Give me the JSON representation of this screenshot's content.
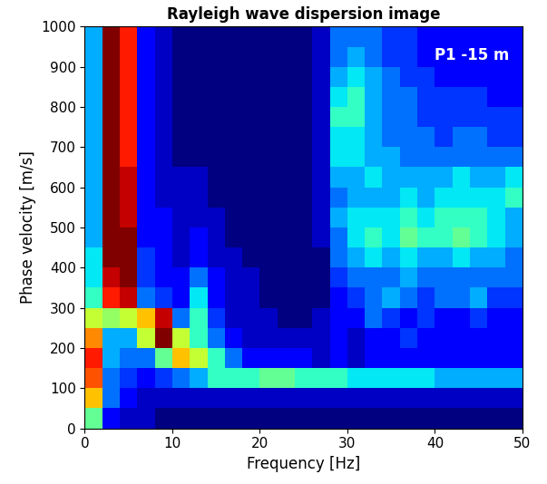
{
  "chart_data": {
    "type": "heatmap",
    "title": "Rayleigh wave dispersion image",
    "x_label": "Frequency [Hz]",
    "y_label": "Phase velocity [m/s]",
    "annotation": "P1 -15 m",
    "color": "jet",
    "xlim": [
      0,
      50
    ],
    "ylim": [
      0,
      1000
    ],
    "xticks": [
      0,
      10,
      20,
      30,
      40,
      50
    ],
    "yticks": [
      0,
      100,
      200,
      300,
      400,
      500,
      600,
      700,
      800,
      900,
      1000
    ],
    "x_edges": [
      0,
      2,
      4,
      6,
      8,
      10,
      12,
      14,
      16,
      18,
      20,
      22,
      24,
      26,
      28,
      30,
      32,
      34,
      36,
      38,
      40,
      42,
      44,
      46,
      48,
      50
    ],
    "y_edges": [
      0,
      50,
      100,
      150,
      200,
      250,
      300,
      350,
      400,
      450,
      500,
      550,
      600,
      650,
      700,
      750,
      800,
      850,
      900,
      950,
      1000
    ],
    "cells": [
      [
        0.5,
        0.2,
        0.15,
        0.15,
        0.1,
        0.1,
        0.1,
        0.1,
        0.1,
        0.1,
        0.1,
        0.1,
        0.1,
        0.1,
        0.1,
        0.1,
        0.1,
        0.1,
        0.1,
        0.1,
        0.1,
        0.1,
        0.1,
        0.1,
        0.1
      ],
      [
        0.7,
        0.3,
        0.2,
        0.15,
        0.15,
        0.15,
        0.15,
        0.15,
        0.15,
        0.15,
        0.15,
        0.15,
        0.15,
        0.15,
        0.15,
        0.15,
        0.15,
        0.15,
        0.15,
        0.15,
        0.15,
        0.15,
        0.15,
        0.15,
        0.15
      ],
      [
        0.8,
        0.3,
        0.25,
        0.2,
        0.25,
        0.3,
        0.35,
        0.45,
        0.45,
        0.45,
        0.5,
        0.5,
        0.45,
        0.45,
        0.45,
        0.4,
        0.4,
        0.4,
        0.4,
        0.4,
        0.35,
        0.35,
        0.35,
        0.35,
        0.35
      ],
      [
        0.85,
        0.35,
        0.3,
        0.3,
        0.5,
        0.7,
        0.6,
        0.45,
        0.3,
        0.2,
        0.2,
        0.2,
        0.2,
        0.15,
        0.2,
        0.15,
        0.2,
        0.2,
        0.2,
        0.2,
        0.2,
        0.2,
        0.2,
        0.2,
        0.2
      ],
      [
        0.75,
        0.35,
        0.35,
        0.6,
        0.95,
        0.6,
        0.45,
        0.3,
        0.2,
        0.15,
        0.15,
        0.15,
        0.15,
        0.15,
        0.2,
        0.15,
        0.2,
        0.2,
        0.25,
        0.2,
        0.2,
        0.2,
        0.2,
        0.2,
        0.2
      ],
      [
        0.6,
        0.55,
        0.6,
        0.7,
        0.9,
        0.3,
        0.45,
        0.25,
        0.15,
        0.15,
        0.15,
        0.1,
        0.1,
        0.15,
        0.2,
        0.2,
        0.3,
        0.25,
        0.2,
        0.25,
        0.2,
        0.2,
        0.25,
        0.2,
        0.2
      ],
      [
        0.45,
        0.85,
        0.9,
        0.3,
        0.25,
        0.2,
        0.4,
        0.2,
        0.15,
        0.15,
        0.1,
        0.1,
        0.1,
        0.1,
        0.2,
        0.25,
        0.3,
        0.35,
        0.3,
        0.25,
        0.3,
        0.3,
        0.35,
        0.25,
        0.25
      ],
      [
        0.4,
        0.9,
        0.95,
        0.25,
        0.2,
        0.2,
        0.3,
        0.2,
        0.15,
        0.15,
        0.1,
        0.1,
        0.1,
        0.1,
        0.25,
        0.3,
        0.3,
        0.3,
        0.35,
        0.3,
        0.3,
        0.3,
        0.3,
        0.3,
        0.3
      ],
      [
        0.4,
        0.95,
        0.95,
        0.25,
        0.2,
        0.15,
        0.2,
        0.15,
        0.15,
        0.1,
        0.1,
        0.1,
        0.1,
        0.1,
        0.3,
        0.35,
        0.4,
        0.35,
        0.4,
        0.35,
        0.35,
        0.4,
        0.35,
        0.35,
        0.3
      ],
      [
        0.35,
        0.95,
        0.95,
        0.2,
        0.2,
        0.15,
        0.2,
        0.15,
        0.1,
        0.1,
        0.1,
        0.1,
        0.1,
        0.15,
        0.3,
        0.4,
        0.45,
        0.4,
        0.5,
        0.45,
        0.45,
        0.5,
        0.45,
        0.4,
        0.35
      ],
      [
        0.35,
        0.95,
        0.9,
        0.2,
        0.2,
        0.15,
        0.15,
        0.15,
        0.1,
        0.1,
        0.1,
        0.1,
        0.1,
        0.15,
        0.35,
        0.4,
        0.4,
        0.4,
        0.45,
        0.4,
        0.45,
        0.45,
        0.45,
        0.4,
        0.35
      ],
      [
        0.35,
        0.95,
        0.9,
        0.2,
        0.15,
        0.15,
        0.15,
        0.1,
        0.1,
        0.1,
        0.1,
        0.1,
        0.1,
        0.15,
        0.3,
        0.35,
        0.35,
        0.35,
        0.4,
        0.35,
        0.4,
        0.4,
        0.4,
        0.4,
        0.45
      ],
      [
        0.35,
        0.95,
        0.9,
        0.2,
        0.15,
        0.15,
        0.15,
        0.1,
        0.1,
        0.1,
        0.1,
        0.1,
        0.1,
        0.15,
        0.35,
        0.35,
        0.4,
        0.35,
        0.35,
        0.35,
        0.35,
        0.4,
        0.35,
        0.35,
        0.4
      ],
      [
        0.35,
        0.95,
        0.85,
        0.2,
        0.15,
        0.1,
        0.1,
        0.1,
        0.1,
        0.1,
        0.1,
        0.1,
        0.1,
        0.15,
        0.4,
        0.4,
        0.35,
        0.35,
        0.3,
        0.3,
        0.3,
        0.3,
        0.3,
        0.3,
        0.3
      ],
      [
        0.35,
        0.95,
        0.85,
        0.2,
        0.15,
        0.1,
        0.1,
        0.1,
        0.1,
        0.1,
        0.1,
        0.1,
        0.1,
        0.15,
        0.4,
        0.4,
        0.35,
        0.3,
        0.3,
        0.3,
        0.25,
        0.3,
        0.3,
        0.25,
        0.25
      ],
      [
        0.35,
        0.95,
        0.85,
        0.2,
        0.15,
        0.1,
        0.1,
        0.1,
        0.1,
        0.1,
        0.1,
        0.1,
        0.1,
        0.15,
        0.45,
        0.45,
        0.35,
        0.3,
        0.3,
        0.25,
        0.25,
        0.25,
        0.25,
        0.25,
        0.25
      ],
      [
        0.35,
        0.95,
        0.85,
        0.2,
        0.15,
        0.1,
        0.1,
        0.1,
        0.1,
        0.1,
        0.1,
        0.1,
        0.1,
        0.15,
        0.4,
        0.45,
        0.35,
        0.3,
        0.3,
        0.25,
        0.25,
        0.25,
        0.25,
        0.2,
        0.2
      ],
      [
        0.35,
        0.95,
        0.85,
        0.2,
        0.15,
        0.1,
        0.1,
        0.1,
        0.1,
        0.1,
        0.1,
        0.1,
        0.1,
        0.15,
        0.35,
        0.4,
        0.35,
        0.3,
        0.25,
        0.25,
        0.2,
        0.2,
        0.2,
        0.2,
        0.2
      ],
      [
        0.35,
        0.95,
        0.85,
        0.2,
        0.15,
        0.1,
        0.1,
        0.1,
        0.1,
        0.1,
        0.1,
        0.1,
        0.1,
        0.15,
        0.3,
        0.35,
        0.3,
        0.25,
        0.25,
        0.2,
        0.2,
        0.2,
        0.2,
        0.2,
        0.2
      ],
      [
        0.35,
        0.95,
        0.85,
        0.2,
        0.15,
        0.1,
        0.1,
        0.1,
        0.1,
        0.1,
        0.1,
        0.1,
        0.1,
        0.15,
        0.3,
        0.3,
        0.3,
        0.25,
        0.25,
        0.2,
        0.2,
        0.2,
        0.2,
        0.2,
        0.2
      ]
    ]
  }
}
